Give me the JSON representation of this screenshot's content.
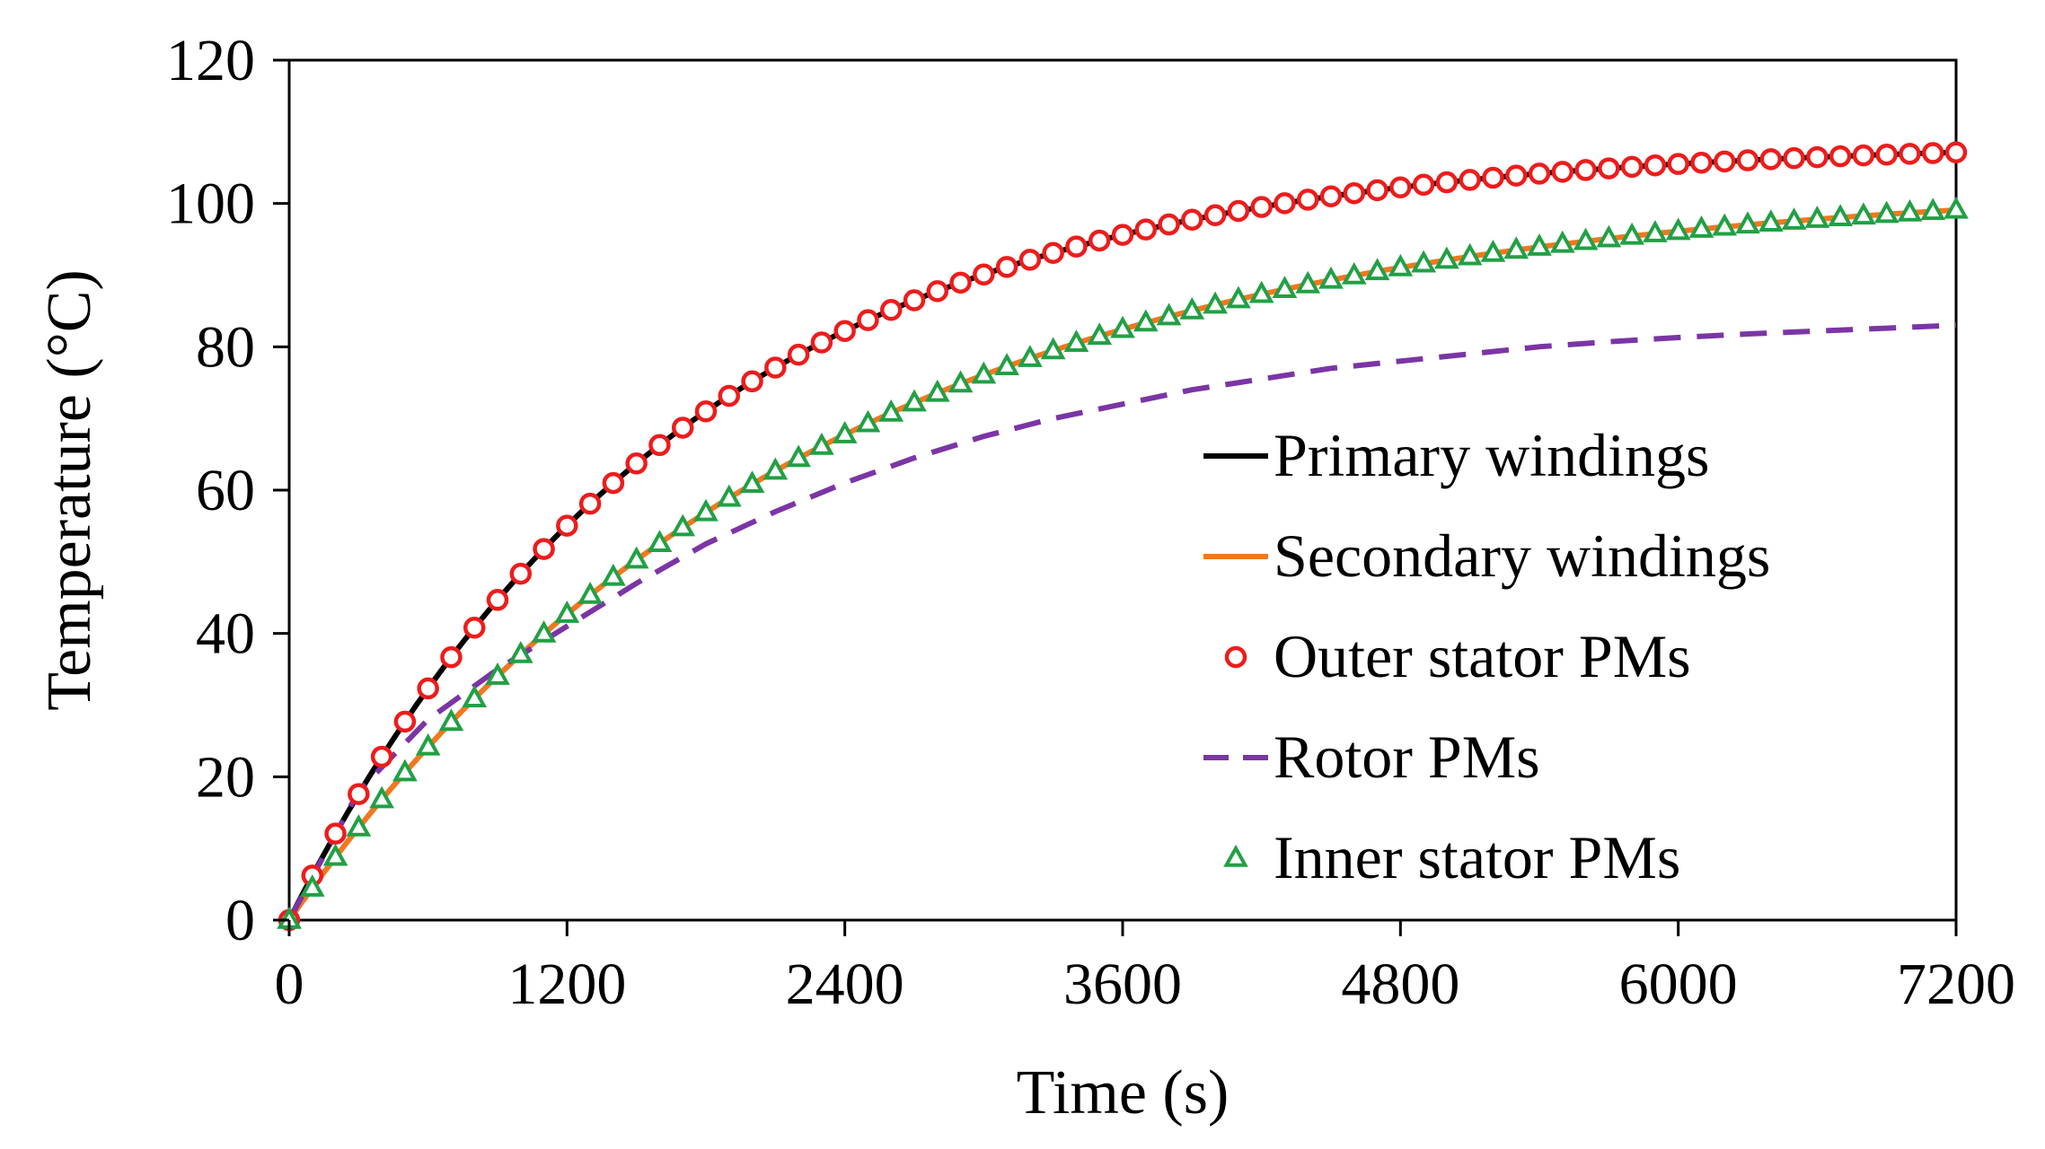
{
  "chart_data": {
    "type": "line",
    "title": "",
    "xlabel": "Time (s)",
    "ylabel": "Temperature (°C)",
    "xlim": [
      0,
      7200
    ],
    "ylim": [
      0,
      120
    ],
    "xticks": [
      0,
      1200,
      2400,
      3600,
      4800,
      6000,
      7200
    ],
    "yticks": [
      0,
      20,
      40,
      60,
      80,
      100,
      120
    ],
    "grid": false,
    "legend_position": "right-center",
    "series": [
      {
        "name": "Primary windings",
        "color": "#000000",
        "style": "solid",
        "marker": "none",
        "model": {
          "final": 108.7,
          "tau": 1700
        }
      },
      {
        "name": "Secondary windings",
        "color": "#f07820",
        "style": "solid",
        "marker": "none",
        "model": {
          "final": 103.3,
          "tau": 2250
        }
      },
      {
        "name": "Outer stator PMs",
        "color": "#ee1c1c",
        "style": "none",
        "marker": "circle",
        "model": {
          "final": 108.7,
          "tau": 1700
        }
      },
      {
        "name": "Rotor PMs",
        "color": "#7b35a5",
        "style": "dashed",
        "marker": "none",
        "points": [
          [
            0,
            0
          ],
          [
            300,
            18
          ],
          [
            600,
            28
          ],
          [
            900,
            35
          ],
          [
            1200,
            41
          ],
          [
            1500,
            47
          ],
          [
            1800,
            52.5
          ],
          [
            2100,
            57
          ],
          [
            2400,
            61
          ],
          [
            2700,
            64.5
          ],
          [
            3000,
            67.5
          ],
          [
            3300,
            70
          ],
          [
            3600,
            72
          ],
          [
            3900,
            74
          ],
          [
            4200,
            75.5
          ],
          [
            4500,
            77
          ],
          [
            4800,
            78
          ],
          [
            5100,
            79
          ],
          [
            5400,
            80
          ],
          [
            5700,
            80.7
          ],
          [
            6000,
            81.3
          ],
          [
            6300,
            81.8
          ],
          [
            6600,
            82.2
          ],
          [
            6900,
            82.6
          ],
          [
            7200,
            83
          ]
        ]
      },
      {
        "name": "Inner stator PMs",
        "color": "#21a045",
        "style": "none",
        "marker": "triangle",
        "model": {
          "final": 103.3,
          "tau": 2250
        }
      }
    ],
    "marker_interval": 100
  }
}
